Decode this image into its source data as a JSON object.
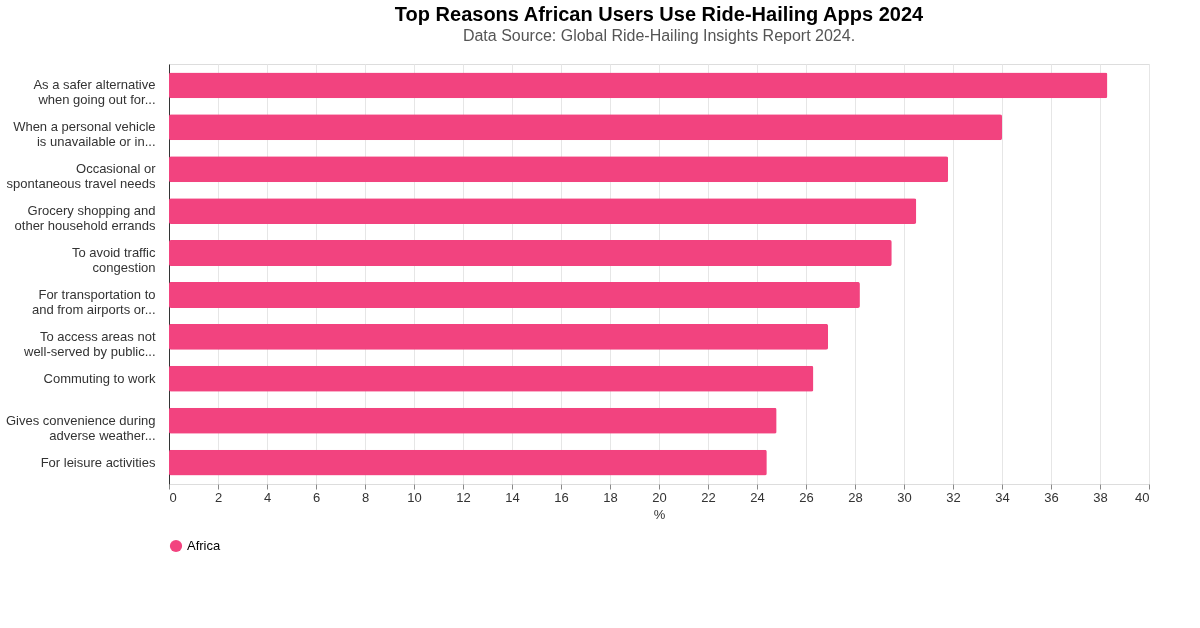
{
  "chart_data": {
    "type": "bar",
    "orientation": "horizontal",
    "title": "Top Reasons African Users Use Ride-Hailing Apps 2024",
    "subtitle": "Data Source: Global Ride-Hailing Insights Report 2024.",
    "categories": [
      "As a safer alternative\nwhen going out for...",
      "When a personal vehicle\nis unavailable or in...",
      "Occasional or\nspontaneous travel needs",
      "Grocery shopping and\nother household errands",
      "To avoid traffic\ncongestion",
      "For transportation to\nand from airports or...",
      "To access areas not\nwell-served by public...",
      "Commuting to work",
      "Gives convenience during\nadverse weather...",
      "For leisure activities"
    ],
    "series": [
      {
        "name": "Africa",
        "color": "#f2437f",
        "values": [
          38.3,
          34.0,
          31.8,
          30.5,
          29.5,
          28.2,
          26.9,
          26.3,
          24.8,
          24.4
        ]
      }
    ],
    "xlim": [
      0,
      40
    ],
    "xticks": [
      0,
      2,
      4,
      6,
      8,
      10,
      12,
      14,
      16,
      18,
      20,
      22,
      24,
      26,
      28,
      30,
      32,
      34,
      36,
      38,
      40
    ],
    "xlabel": "%",
    "grid": "x",
    "legend": "bottom"
  }
}
